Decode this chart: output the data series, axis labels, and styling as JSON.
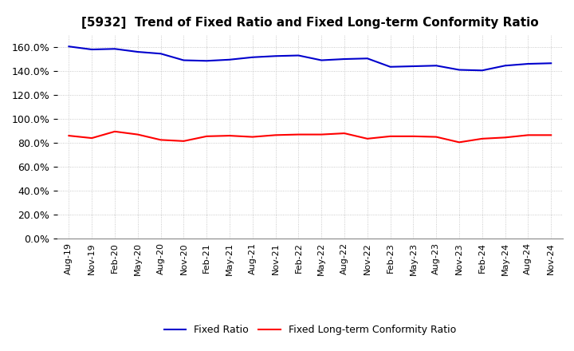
{
  "title": "[5932]  Trend of Fixed Ratio and Fixed Long-term Conformity Ratio",
  "x_labels": [
    "Aug-19",
    "Nov-19",
    "Feb-20",
    "May-20",
    "Aug-20",
    "Nov-20",
    "Feb-21",
    "May-21",
    "Aug-21",
    "Nov-21",
    "Feb-22",
    "May-22",
    "Aug-22",
    "Nov-22",
    "Feb-23",
    "May-23",
    "Aug-23",
    "Nov-23",
    "Feb-24",
    "May-24",
    "Aug-24",
    "Nov-24"
  ],
  "fixed_ratio": [
    160.5,
    158.0,
    158.5,
    156.0,
    154.5,
    149.0,
    148.5,
    149.5,
    151.5,
    152.5,
    153.0,
    149.0,
    150.0,
    150.5,
    143.5,
    144.0,
    144.5,
    141.0,
    140.5,
    144.5,
    146.0,
    146.5
  ],
  "fixed_lt_ratio": [
    86.0,
    84.0,
    89.5,
    87.0,
    82.5,
    81.5,
    85.5,
    86.0,
    85.0,
    86.5,
    87.0,
    87.0,
    88.0,
    83.5,
    85.5,
    85.5,
    85.0,
    80.5,
    83.5,
    84.5,
    86.5,
    86.5
  ],
  "fixed_ratio_color": "#0000CD",
  "fixed_lt_ratio_color": "#FF0000",
  "ylim": [
    0,
    170
  ],
  "yticks": [
    0,
    20,
    40,
    60,
    80,
    100,
    120,
    140,
    160
  ],
  "background_color": "#FFFFFF",
  "grid_color": "#BBBBBB",
  "legend_fixed": "Fixed Ratio",
  "legend_lt": "Fixed Long-term Conformity Ratio",
  "title_fontsize": 11,
  "tick_fontsize": 9,
  "legend_fontsize": 9
}
